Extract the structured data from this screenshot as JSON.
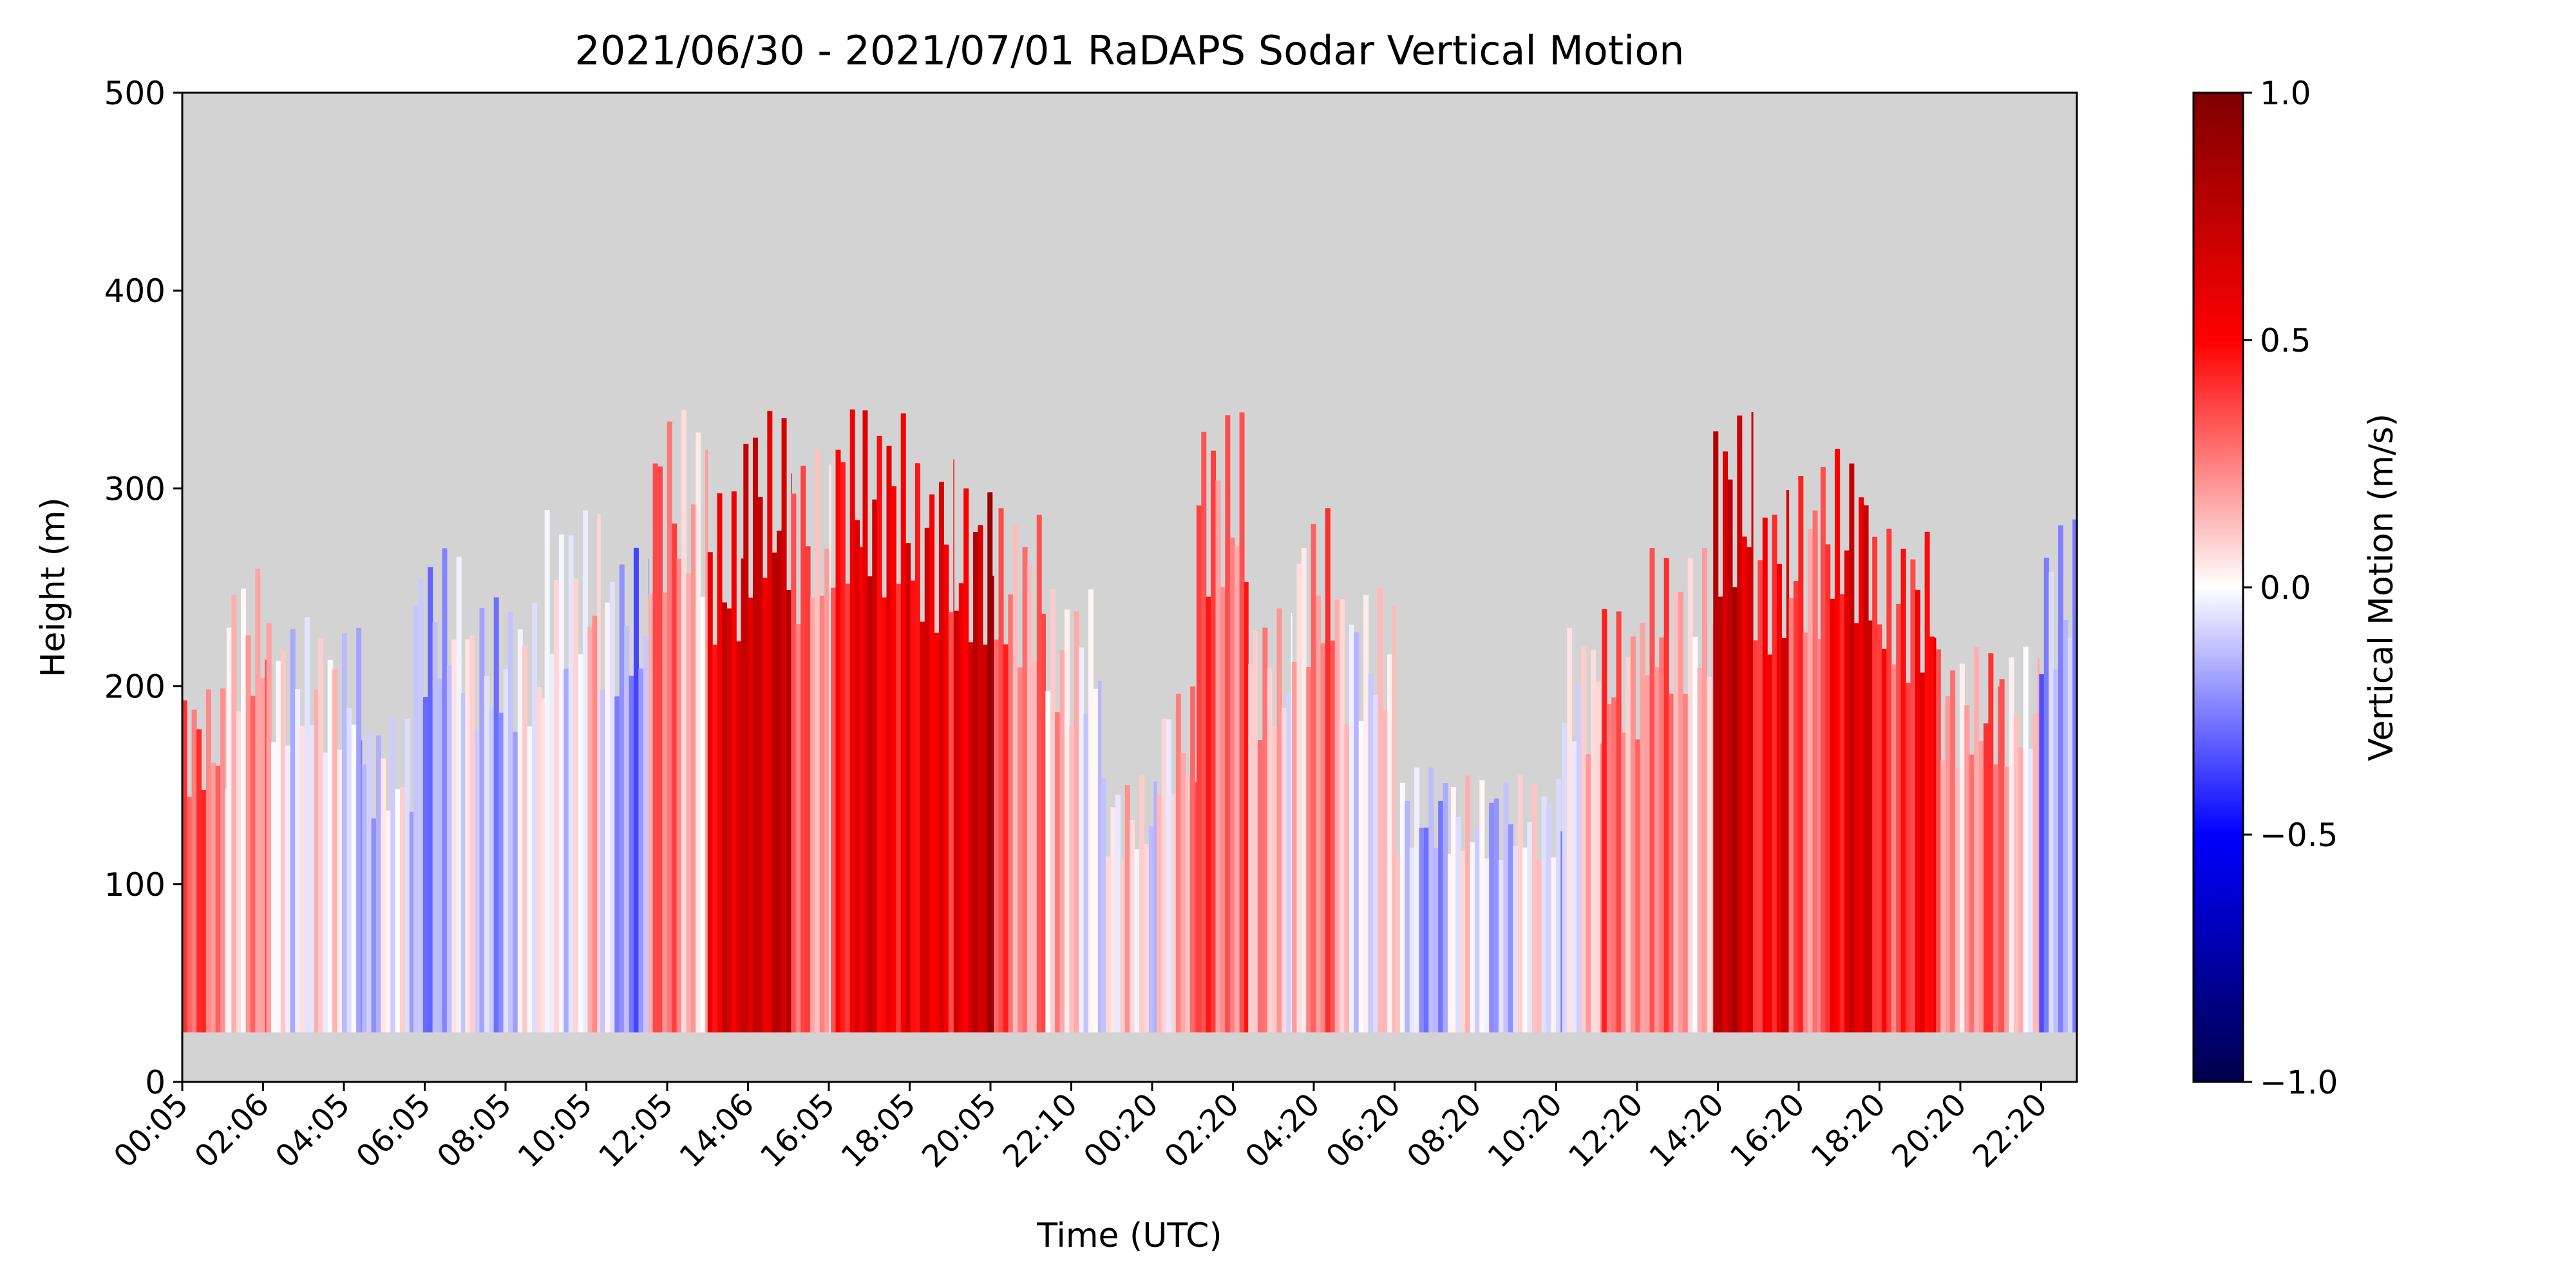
{
  "chart_data": {
    "type": "heatmap",
    "title": "2021/06/30 - 2021/07/01 RaDAPS Sodar Vertical Motion",
    "xlabel": "Time (UTC)",
    "ylabel": "Height (m)",
    "x_tick_labels": [
      "00:05",
      "02:06",
      "04:05",
      "06:05",
      "08:05",
      "10:05",
      "12:05",
      "14:06",
      "16:05",
      "18:05",
      "20:05",
      "22:10",
      "00:20",
      "02:20",
      "04:20",
      "06:20",
      "08:20",
      "10:20",
      "12:20",
      "14:20",
      "16:20",
      "18:20",
      "20:20",
      "22:20"
    ],
    "y_ticks": [
      0,
      100,
      200,
      300,
      400,
      500
    ],
    "ylim": [
      0,
      500
    ],
    "x_range_hours": [
      0.083,
      47.75
    ],
    "colorbar": {
      "label": "Vertical Motion (m/s)",
      "ticks": [
        1.0,
        0.5,
        0.0,
        -0.5,
        -1.0
      ],
      "tick_labels": [
        "1.0",
        "0.5",
        "0.0",
        "−0.5",
        "−1.0"
      ],
      "range": [
        -1.0,
        1.0
      ],
      "colormap": "seismic",
      "colors": [
        "#00004c",
        "#0000ff",
        "#ffffff",
        "#ff0000",
        "#7f0000"
      ]
    },
    "missing_color": "#d3d3d3",
    "min_height_m": 25,
    "grid": false,
    "segments": [
      {
        "t0": 0.08,
        "t1": 1.2,
        "top": 200,
        "v": 0.25
      },
      {
        "t0": 1.2,
        "t1": 2.2,
        "top": 260,
        "v": 0.15
      },
      {
        "t0": 2.2,
        "t1": 3.5,
        "top": 235,
        "v": 0.05
      },
      {
        "t0": 3.5,
        "t1": 4.6,
        "top": 230,
        "v": -0.05
      },
      {
        "t0": 4.6,
        "t1": 5.9,
        "top": 185,
        "v": -0.1
      },
      {
        "t0": 5.9,
        "t1": 7.2,
        "top": 270,
        "v": -0.12
      },
      {
        "t0": 7.2,
        "t1": 9.2,
        "top": 245,
        "v": -0.08
      },
      {
        "t0": 9.2,
        "t1": 10.6,
        "top": 290,
        "v": 0.05
      },
      {
        "t0": 10.6,
        "t1": 11.8,
        "top": 270,
        "v": -0.15
      },
      {
        "t0": 11.8,
        "t1": 13.3,
        "top": 340,
        "v": 0.2
      },
      {
        "t0": 13.3,
        "t1": 14.2,
        "top": 300,
        "v": 0.55
      },
      {
        "t0": 14.2,
        "t1": 15.4,
        "top": 340,
        "v": 0.75
      },
      {
        "t0": 15.4,
        "t1": 16.4,
        "top": 320,
        "v": 0.25
      },
      {
        "t0": 16.4,
        "t1": 17.2,
        "top": 345,
        "v": 0.45
      },
      {
        "t0": 17.2,
        "t1": 18.4,
        "top": 340,
        "v": 0.6
      },
      {
        "t0": 18.4,
        "t1": 19.5,
        "top": 315,
        "v": 0.5
      },
      {
        "t0": 19.5,
        "t1": 20.5,
        "top": 305,
        "v": 0.7
      },
      {
        "t0": 20.5,
        "t1": 21.8,
        "top": 290,
        "v": 0.3
      },
      {
        "t0": 21.8,
        "t1": 23.2,
        "top": 250,
        "v": 0.05
      },
      {
        "t0": 23.2,
        "t1": 24.6,
        "top": 155,
        "v": 0.0
      },
      {
        "t0": 24.6,
        "t1": 25.6,
        "top": 200,
        "v": 0.15
      },
      {
        "t0": 25.6,
        "t1": 26.9,
        "top": 340,
        "v": 0.35
      },
      {
        "t0": 26.9,
        "t1": 28.0,
        "top": 240,
        "v": 0.1
      },
      {
        "t0": 28.0,
        "t1": 29.2,
        "top": 290,
        "v": 0.2
      },
      {
        "t0": 29.2,
        "t1": 30.6,
        "top": 250,
        "v": 0.05
      },
      {
        "t0": 30.6,
        "t1": 32.0,
        "top": 160,
        "v": -0.1
      },
      {
        "t0": 32.0,
        "t1": 34.8,
        "top": 155,
        "v": -0.05
      },
      {
        "t0": 34.8,
        "t1": 35.8,
        "top": 230,
        "v": 0.05
      },
      {
        "t0": 35.8,
        "t1": 37.0,
        "top": 240,
        "v": 0.3
      },
      {
        "t0": 37.0,
        "t1": 38.6,
        "top": 270,
        "v": 0.2
      },
      {
        "t0": 38.6,
        "t1": 39.6,
        "top": 340,
        "v": 0.65
      },
      {
        "t0": 39.6,
        "t1": 40.5,
        "top": 300,
        "v": 0.55
      },
      {
        "t0": 40.5,
        "t1": 41.3,
        "top": 310,
        "v": 0.25
      },
      {
        "t0": 41.3,
        "t1": 42.6,
        "top": 320,
        "v": 0.55
      },
      {
        "t0": 42.6,
        "t1": 44.2,
        "top": 280,
        "v": 0.45
      },
      {
        "t0": 44.2,
        "t1": 45.8,
        "top": 220,
        "v": 0.25
      },
      {
        "t0": 45.8,
        "t1": 46.8,
        "top": 220,
        "v": 0.15
      },
      {
        "t0": 46.8,
        "t1": 47.75,
        "top": 285,
        "v": -0.25
      }
    ]
  }
}
